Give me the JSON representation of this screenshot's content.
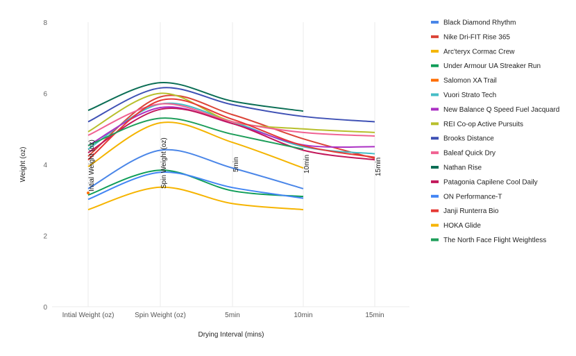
{
  "chart_data": {
    "type": "line",
    "title": "",
    "xlabel": "Drying Interval (mins)",
    "ylabel": "Weight (oz)",
    "categories": [
      "Intial Weight (oz)",
      "Spin Weight (oz)",
      "5min",
      "10min",
      "15min"
    ],
    "ylim": [
      0,
      8
    ],
    "yticks": [
      "0",
      "2",
      "4",
      "6",
      "8"
    ],
    "grid": "vertical only",
    "legend": "right",
    "curve": "smooth",
    "series": [
      {
        "name": "Black Diamond Rhythm",
        "color": "#4a86e8",
        "values": [
          3.32,
          4.4,
          3.9,
          3.32,
          null
        ]
      },
      {
        "name": "Nike Dri-FIT Rise 365",
        "color": "#db4437",
        "values": [
          4.23,
          5.9,
          5.4,
          4.72,
          4.17
        ]
      },
      {
        "name": "Arc'teryx Cormac Crew",
        "color": "#f4b400",
        "values": [
          3.94,
          5.17,
          4.62,
          3.9,
          null
        ]
      },
      {
        "name": "Under Armour UA Streaker Run",
        "color": "#0f9d58",
        "values": [
          3.14,
          3.84,
          3.26,
          3.1,
          null
        ]
      },
      {
        "name": "Salomon XA Trail",
        "color": "#ff6d00",
        "values": [
          3.2,
          null,
          null,
          null,
          null
        ]
      },
      {
        "name": "Vuori Strato Tech",
        "color": "#46bdc6",
        "values": [
          4.43,
          5.7,
          5.2,
          4.5,
          4.3
        ]
      },
      {
        "name": "New Balance Q Speed Fuel Jacquard",
        "color": "#ab30c4",
        "values": [
          4.53,
          5.6,
          5.15,
          4.55,
          4.5
        ]
      },
      {
        "name": "REI Co-op Active Pursuits",
        "color": "#b8bf2c",
        "values": [
          4.92,
          6.0,
          5.2,
          5.0,
          4.9
        ]
      },
      {
        "name": "Brooks Distance",
        "color": "#3f51b5",
        "values": [
          5.2,
          6.15,
          5.68,
          5.35,
          5.2
        ]
      },
      {
        "name": "Baleaf Quick Dry",
        "color": "#f06292",
        "values": [
          4.82,
          5.7,
          5.2,
          4.9,
          4.8
        ]
      },
      {
        "name": "Nathan Rise",
        "color": "#0b6e55",
        "values": [
          5.52,
          6.3,
          5.78,
          5.5,
          null
        ]
      },
      {
        "name": "Patagonia Capilene Cool Daily",
        "color": "#c2185b",
        "values": [
          4.33,
          5.55,
          5.15,
          4.4,
          4.13
        ]
      },
      {
        "name": "ON Performance-T",
        "color": "#4285f4",
        "values": [
          3.02,
          3.78,
          3.35,
          3.05,
          null
        ]
      },
      {
        "name": "Janji Runterra Bio",
        "color": "#e53935",
        "values": [
          4.13,
          5.8,
          5.27,
          4.53,
          4.2
        ]
      },
      {
        "name": "HOKA Glide",
        "color": "#f6b400",
        "values": [
          2.73,
          3.36,
          2.9,
          2.73,
          null
        ]
      },
      {
        "name": "The North Face Flight Weightless",
        "color": "#1e9e5a",
        "values": [
          4.53,
          5.3,
          4.85,
          4.43,
          null
        ]
      }
    ],
    "annotations": [
      "Intial Weight (oz)",
      "Spin Weight (oz)",
      "5min",
      "10min",
      "15min"
    ]
  }
}
